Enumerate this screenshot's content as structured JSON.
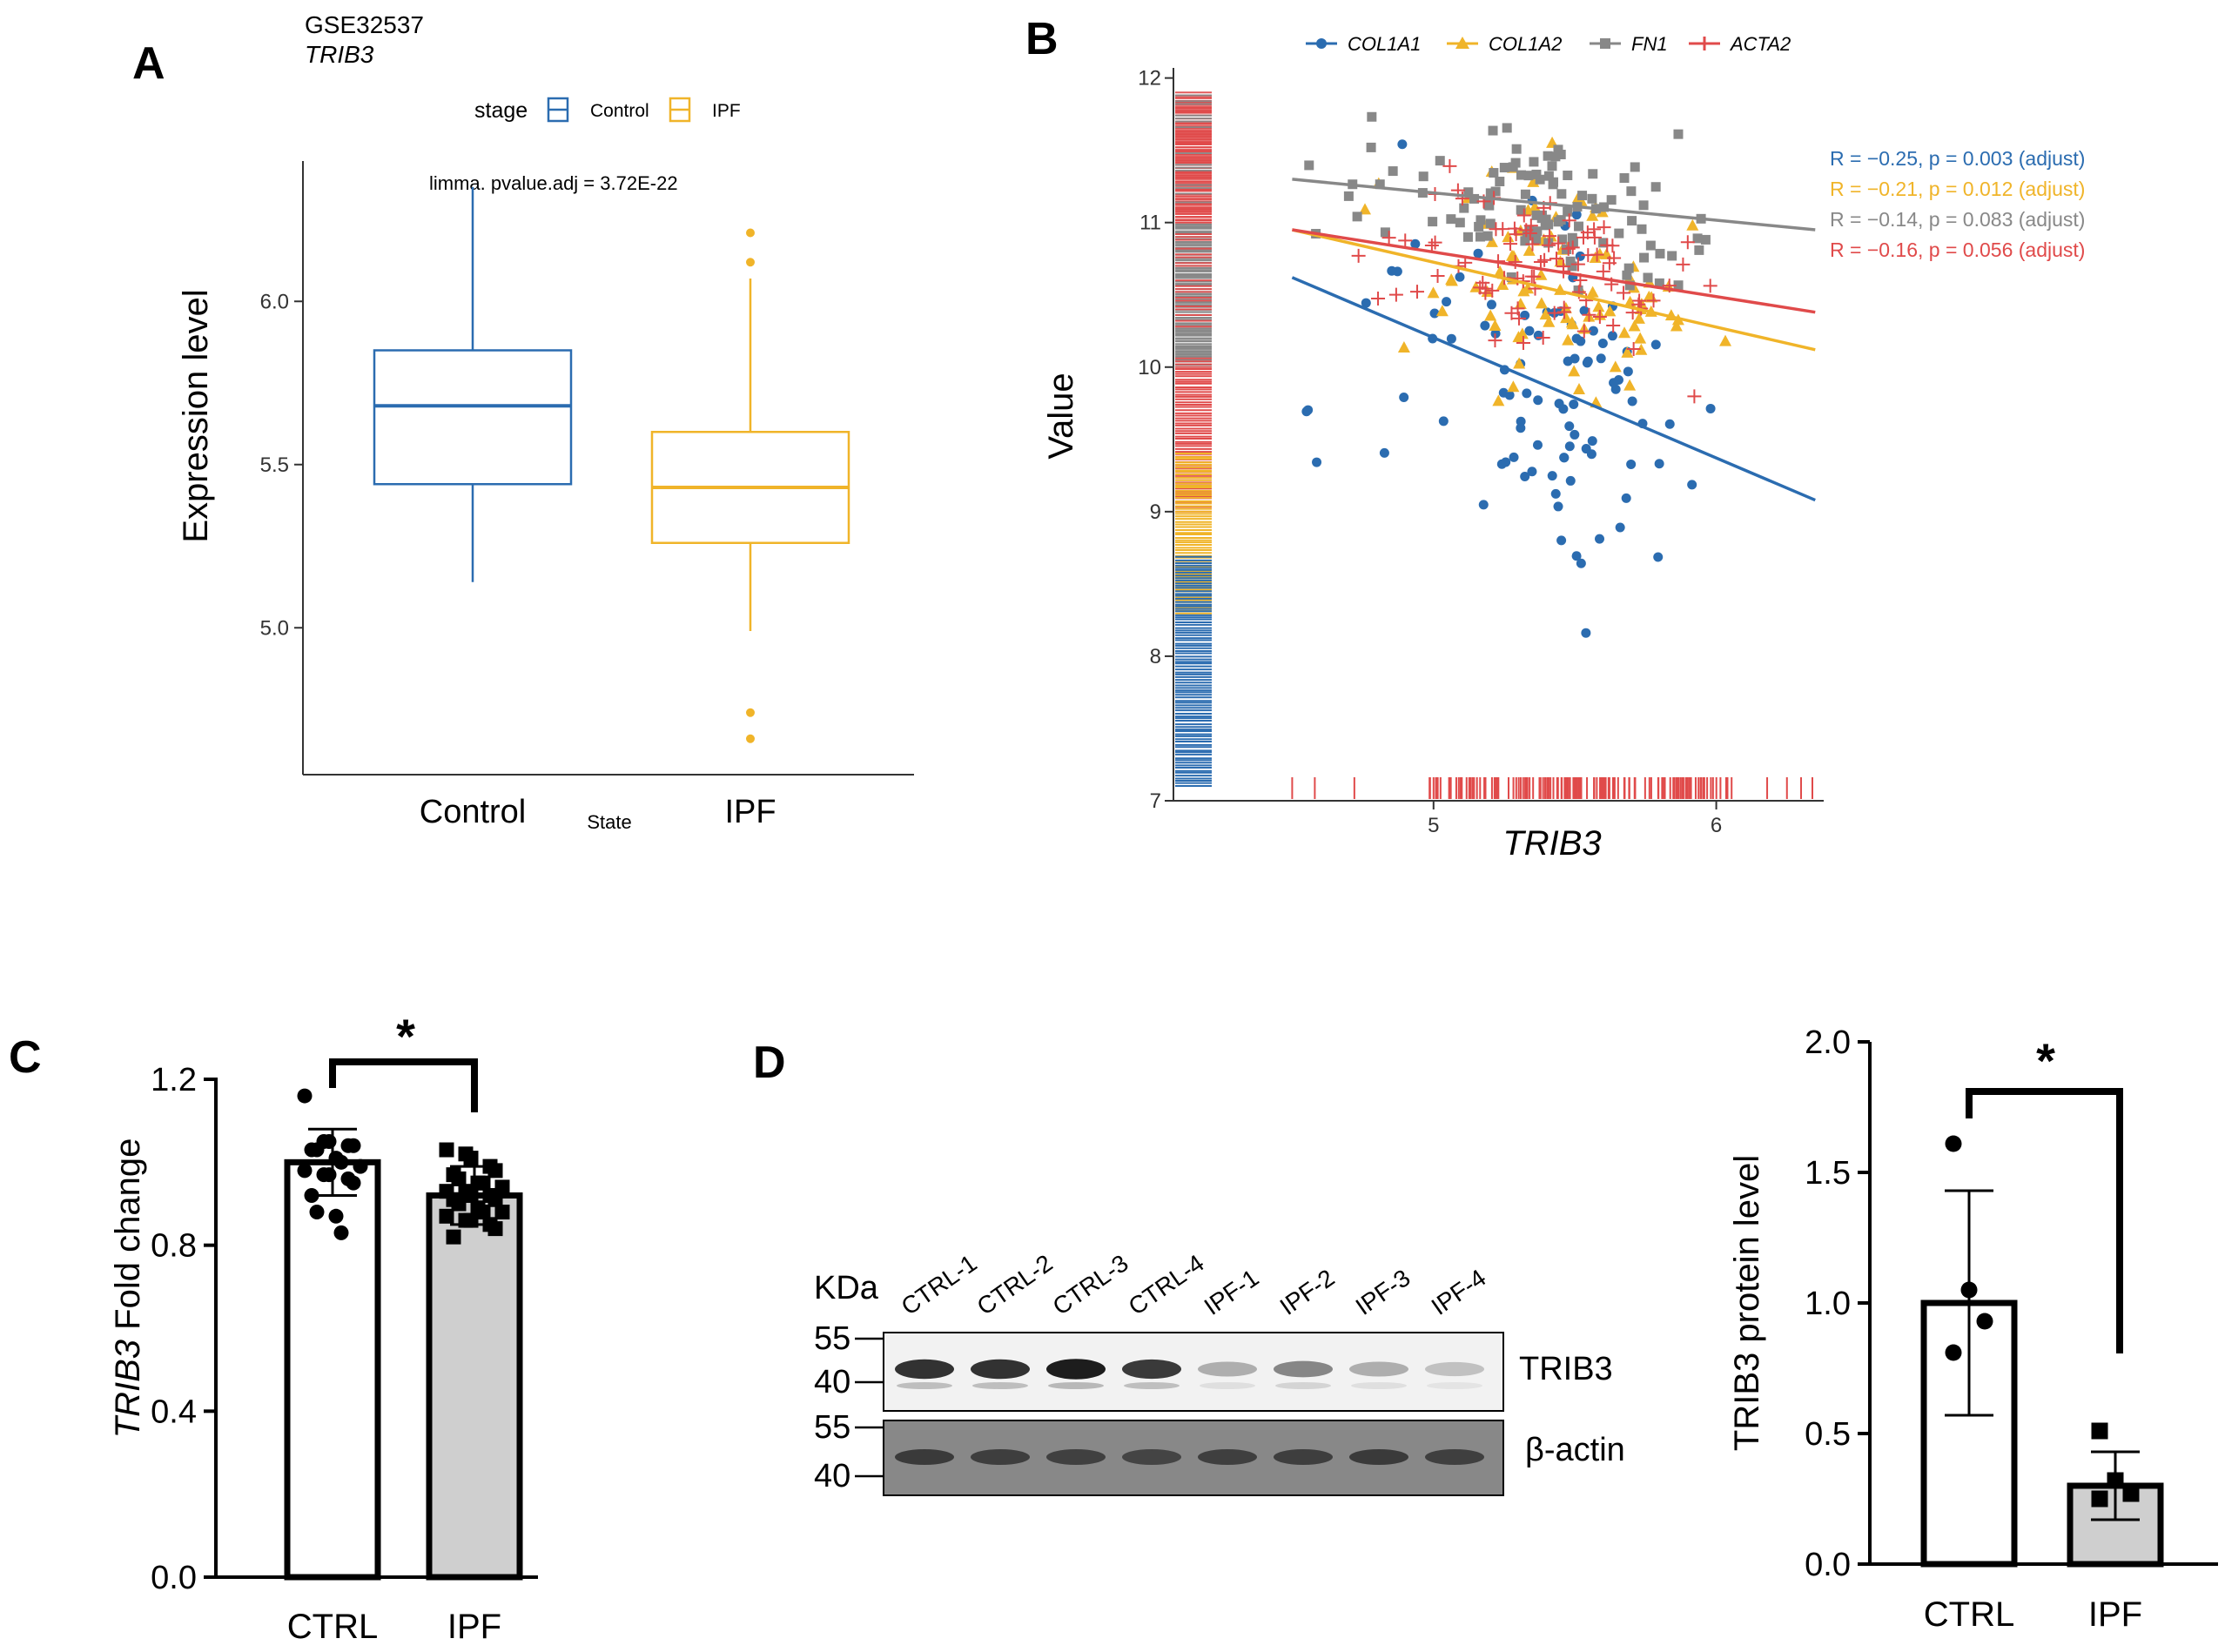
{
  "chart_data": [
    {
      "panel": "A",
      "type": "box",
      "title": "GSE32537",
      "subtitle": "TRIB3",
      "subtitle_italic": true,
      "legend_title": "stage",
      "legend_items": [
        "Control",
        "IPF"
      ],
      "annotation": "limma. pvalue.adj = 3.72E-22",
      "xlabel": "State",
      "ylabel": "Expression level",
      "ylim": [
        4.55,
        6.43
      ],
      "yticks": [
        5.0,
        5.5,
        6.0
      ],
      "ytick_labels": [
        "5.0",
        "5.5",
        "6.0"
      ],
      "colors": [
        "#2b6cb0",
        "#f0b429"
      ],
      "groups": [
        {
          "name": "Control",
          "min": 5.14,
          "q1": 5.44,
          "median": 5.68,
          "q3": 5.85,
          "max": 6.35,
          "outliers": []
        },
        {
          "name": "IPF",
          "min": 4.99,
          "q1": 5.26,
          "median": 5.43,
          "q3": 5.6,
          "max": 6.07,
          "outliers": [
            6.21,
            6.12,
            4.74,
            4.66
          ]
        }
      ]
    },
    {
      "panel": "B",
      "type": "scatter",
      "xlabel": "TRIB3",
      "ylabel": "Value",
      "xlim": [
        4.08,
        6.38
      ],
      "ylim": [
        7,
        12.07
      ],
      "xticks": [
        5,
        6
      ],
      "xtick_labels": [
        "5",
        "6"
      ],
      "yticks": [
        7,
        8,
        9,
        10,
        11,
        12
      ],
      "ytick_labels": [
        "7",
        "8",
        "9",
        "10",
        "11",
        "12"
      ],
      "series": [
        {
          "name": "COL1A1",
          "color": "#2b6cb0",
          "marker": "circle",
          "fit": [
            [
              4.5,
              10.62
            ],
            [
              6.35,
              9.08
            ]
          ],
          "stat": "R = −0.25, p = 0.003 (adjust)"
        },
        {
          "name": "COL1A2",
          "color": "#f0b429",
          "marker": "triangle",
          "fit": [
            [
              4.5,
              10.95
            ],
            [
              6.35,
              10.12
            ]
          ],
          "stat": "R = −0.21, p = 0.012 (adjust)"
        },
        {
          "name": "FN1",
          "color": "#888888",
          "marker": "square",
          "fit": [
            [
              4.5,
              11.3
            ],
            [
              6.35,
              10.95
            ]
          ],
          "stat": "R = −0.14, p = 0.083 (adjust)"
        },
        {
          "name": "ACTA2",
          "color": "#e04a4a",
          "marker": "plus",
          "fit": [
            [
              4.5,
              10.95
            ],
            [
              6.35,
              10.38
            ]
          ],
          "stat": "R = −0.16, p = 0.056 (adjust)"
        }
      ]
    },
    {
      "panel": "C",
      "type": "bar",
      "categories": [
        "CTRL",
        "IPF"
      ],
      "values": [
        1.0,
        0.92
      ],
      "errors": [
        0.08,
        0.07
      ],
      "ylabel_italic": "TRIB3",
      "ylabel_rest": " Fold change",
      "ylim": [
        0,
        1.2
      ],
      "yticks": [
        0.0,
        0.4,
        0.8,
        1.2
      ],
      "ytick_labels": [
        "0.0",
        "0.4",
        "0.8",
        "1.2"
      ],
      "significance": "*",
      "points": [
        [
          1.16,
          1.05,
          1.05,
          1.04,
          1.04,
          1.03,
          1.03,
          1.01,
          1.0,
          0.99,
          0.98,
          0.97,
          0.97,
          0.96,
          0.95,
          0.92,
          0.88,
          0.87,
          0.83
        ],
        [
          1.03,
          1.02,
          1.01,
          0.99,
          0.98,
          0.97,
          0.96,
          0.95,
          0.95,
          0.94,
          0.93,
          0.93,
          0.92,
          0.92,
          0.91,
          0.91,
          0.9,
          0.89,
          0.88,
          0.88,
          0.87,
          0.86,
          0.86,
          0.85,
          0.84,
          0.82
        ]
      ]
    },
    {
      "panel": "D",
      "type": "bar",
      "categories": [
        "CTRL",
        "IPF"
      ],
      "values": [
        1.0,
        0.3
      ],
      "errors": [
        0.43,
        0.13
      ],
      "ylabel": "TRIB3 protein level",
      "ylim": [
        0,
        2.0
      ],
      "yticks": [
        0.0,
        0.5,
        1.0,
        1.5,
        2.0
      ],
      "ytick_labels": [
        "0.0",
        "0.5",
        "1.0",
        "1.5",
        "2.0"
      ],
      "significance": "*",
      "points": [
        [
          1.61,
          1.05,
          0.93,
          0.81
        ],
        [
          0.51,
          0.32,
          0.27,
          0.25
        ]
      ]
    }
  ],
  "panel_labels": {
    "a": "A",
    "b": "B",
    "c": "C",
    "d": "D"
  },
  "blot": {
    "unit": "KDa",
    "lanes": [
      "CTRL-1",
      "CTRL-2",
      "CTRL-3",
      "CTRL-4",
      "IPF-1",
      "IPF-2",
      "IPF-3",
      "IPF-4"
    ],
    "markers_top": [
      "55",
      "40"
    ],
    "markers_bottom": [
      "55",
      "40"
    ],
    "proteins": [
      "TRIB3",
      "β-actin"
    ],
    "trib3_intensity": [
      0.85,
      0.85,
      0.95,
      0.82,
      0.3,
      0.48,
      0.3,
      0.22
    ],
    "actin_intensity": [
      0.7,
      0.68,
      0.65,
      0.62,
      0.66,
      0.68,
      0.7,
      0.66
    ]
  }
}
